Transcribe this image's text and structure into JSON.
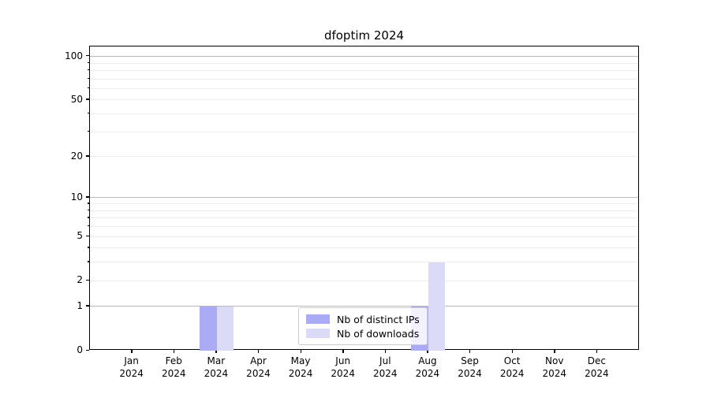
{
  "title": "dfoptim 2024",
  "colors": {
    "distinct_ips_bar": "#aaaaf5",
    "downloads_bar": "#dbdbf8",
    "major_gridline": "#b8b8b8",
    "minor_gridline": "#ececec",
    "axis": "#000000",
    "legend_border": "#cccccc"
  },
  "legend": {
    "items": [
      {
        "label": "Nb of distinct IPs",
        "color": "#aaaaf5"
      },
      {
        "label": "Nb of downloads",
        "color": "#dbdbf8"
      }
    ]
  },
  "chart_data": {
    "type": "bar",
    "title": "dfoptim 2024",
    "categories": [
      "Jan 2024",
      "Feb 2024",
      "Mar 2024",
      "Apr 2024",
      "May 2024",
      "Jun 2024",
      "Jul 2024",
      "Aug 2024",
      "Sep 2024",
      "Oct 2024",
      "Nov 2024",
      "Dec 2024"
    ],
    "series": [
      {
        "name": "Nb of distinct IPs",
        "color": "#aaaaf5",
        "values": [
          0,
          0,
          1,
          0,
          0,
          0,
          0,
          1,
          0,
          0,
          0,
          0
        ]
      },
      {
        "name": "Nb of downloads",
        "color": "#dbdbf8",
        "values": [
          0,
          0,
          1,
          0,
          0,
          0,
          0,
          3,
          0,
          0,
          0,
          0
        ]
      }
    ],
    "xlabel": "",
    "ylabel": "",
    "yscale": "log1p",
    "ylim": [
      0,
      117
    ],
    "yticks": [
      0,
      1,
      2,
      5,
      10,
      20,
      50,
      100
    ],
    "minor_gridline_values": [
      2,
      3,
      4,
      5,
      6,
      7,
      8,
      9,
      20,
      30,
      40,
      50,
      60,
      70,
      80,
      90
    ],
    "major_gridline_values": [
      1,
      10,
      100
    ],
    "grid": "on",
    "legend_position": "lower center"
  }
}
